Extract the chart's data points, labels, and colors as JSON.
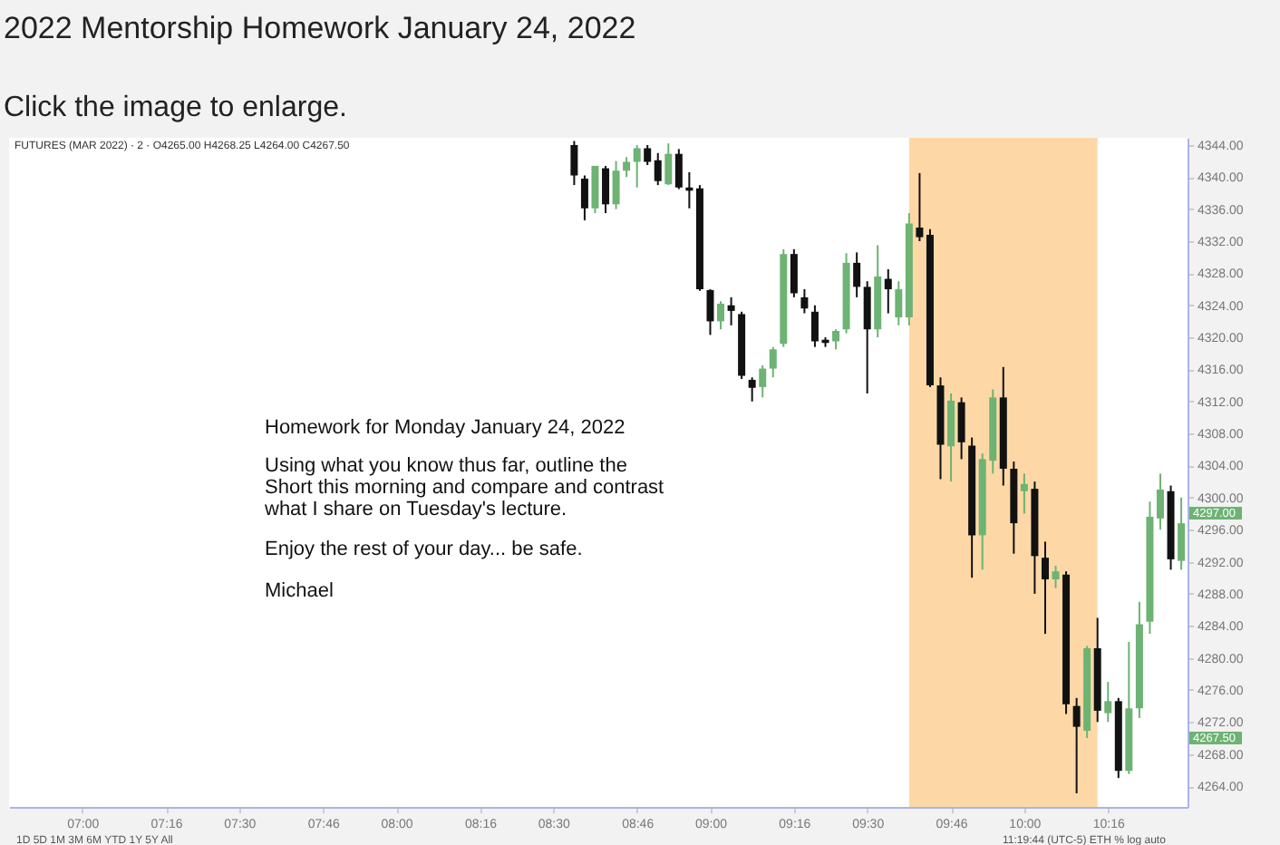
{
  "chart_data": {
    "type": "candlestick",
    "title": "2022 Mentorship Homework January 24, 2022",
    "subtitle": "Click the image to enlarge.",
    "annotations": [
      "FUTURES (MAR 2022) · 2 · O4265.00 H4268.25 L4264.00 C4267.50",
      "Homework for Monday January 24, 2022",
      "Using what you know thus far, outline the\nShort this morning and compare and contrast\nwhat I share on Tuesday's lecture.",
      "Enjoy the rest of your day... be safe.",
      "Michael",
      "1D  5D  1M  3M  6M  YTD  1Y  5Y  All",
      "11:19:44 (UTC-5)   ETH   %   log   auto",
      "4297.00",
      "4267.50"
    ],
    "x": [
      8.5667,
      8.6,
      8.6333,
      8.6667,
      8.7,
      8.7333,
      8.7667,
      8.8,
      8.8333,
      8.8667,
      8.9,
      8.9333,
      8.9667,
      9.0,
      9.0333,
      9.0667,
      9.1,
      9.1333,
      9.1667,
      9.2,
      9.2333,
      9.2667,
      9.3,
      9.3333,
      9.3667,
      9.4,
      9.4333,
      9.4667,
      9.5,
      9.5333,
      9.5667,
      9.6,
      9.6333,
      9.6667,
      9.7,
      9.7333,
      9.7667,
      9.8,
      9.8333,
      9.8667,
      9.9,
      9.9333,
      9.9667,
      10.0,
      10.0333,
      10.0667,
      10.1,
      10.1333,
      10.1667,
      10.2,
      10.2333,
      10.2667,
      10.3,
      10.3333,
      10.3667,
      10.4,
      10.4333,
      10.4667,
      10.5
    ],
    "ohlc": [
      [
        4344.0,
        4344.5,
        4339.0,
        4340.2
      ],
      [
        4339.8,
        4340.2,
        4334.6,
        4336.1
      ],
      [
        4336.1,
        4341.4,
        4335.5,
        4341.4
      ],
      [
        4341.1,
        4341.4,
        4335.5,
        4336.6
      ],
      [
        4336.6,
        4342.0,
        4336.0,
        4340.8
      ],
      [
        4340.8,
        4342.5,
        4340.0,
        4341.9
      ],
      [
        4341.9,
        4344.0,
        4338.7,
        4343.6
      ],
      [
        4343.6,
        4344.0,
        4341.5,
        4341.9
      ],
      [
        4342.1,
        4343.0,
        4339.0,
        4339.5
      ],
      [
        4339.1,
        4344.2,
        4339.0,
        4342.9
      ],
      [
        4342.9,
        4343.5,
        4338.5,
        4338.7
      ],
      [
        4338.7,
        4340.6,
        4336.1,
        4338.3
      ],
      [
        4338.6,
        4339.0,
        4325.8,
        4326.0
      ],
      [
        4325.9,
        4326.0,
        4320.3,
        4322.0
      ],
      [
        4322.0,
        4324.5,
        4321.0,
        4324.2
      ],
      [
        4324.0,
        4325.0,
        4321.5,
        4323.3
      ],
      [
        4322.9,
        4323.2,
        4314.8,
        4315.2
      ],
      [
        4314.7,
        4315.0,
        4312.0,
        4313.7
      ],
      [
        4313.8,
        4316.5,
        4312.5,
        4316.1
      ],
      [
        4316.1,
        4318.8,
        4315.0,
        4318.5
      ],
      [
        4319.2,
        4331.0,
        4318.8,
        4330.4
      ],
      [
        4330.4,
        4331.0,
        4325.0,
        4325.5
      ],
      [
        4325.0,
        4326.0,
        4323.0,
        4323.6
      ],
      [
        4323.2,
        4324.0,
        4318.8,
        4319.5
      ],
      [
        4319.7,
        4320.0,
        4318.8,
        4319.3
      ],
      [
        4319.5,
        4321.0,
        4318.5,
        4320.8
      ],
      [
        4321.0,
        4330.5,
        4320.5,
        4329.3
      ],
      [
        4329.3,
        4330.6,
        4325.0,
        4326.3
      ],
      [
        4326.3,
        4327.0,
        4313.0,
        4321.0
      ],
      [
        4321.0,
        4331.5,
        4320.0,
        4327.6
      ],
      [
        4327.3,
        4328.5,
        4323.0,
        4326.0
      ],
      [
        4322.5,
        4327.0,
        4321.5,
        4326.0
      ],
      [
        4322.5,
        4335.5,
        4321.5,
        4334.2
      ],
      [
        4333.7,
        4340.5,
        4332.0,
        4332.5
      ],
      [
        4332.8,
        4333.5,
        4313.8,
        4314.0
      ],
      [
        4314.0,
        4315.0,
        4302.3,
        4306.6
      ],
      [
        4306.4,
        4313.0,
        4302.0,
        4312.1
      ],
      [
        4311.9,
        4312.5,
        4304.8,
        4306.9
      ],
      [
        4306.5,
        4307.5,
        4290.0,
        4295.3
      ],
      [
        4295.3,
        4305.5,
        4291.0,
        4304.8
      ],
      [
        4304.6,
        4313.5,
        4303.0,
        4312.5
      ],
      [
        4312.5,
        4316.3,
        4301.5,
        4303.6
      ],
      [
        4303.6,
        4304.5,
        4293.0,
        4296.8
      ],
      [
        4300.8,
        4303.0,
        4298.0,
        4301.7
      ],
      [
        4301.1,
        4302.0,
        4288.0,
        4292.7
      ],
      [
        4292.5,
        4294.5,
        4283.0,
        4289.8
      ],
      [
        4289.8,
        4291.5,
        4288.7,
        4290.8
      ],
      [
        4290.4,
        4290.8,
        4273.0,
        4274.2
      ],
      [
        4274.0,
        4275.0,
        4263.1,
        4271.4
      ],
      [
        4270.9,
        4281.5,
        4270.0,
        4281.2
      ],
      [
        4281.2,
        4285.0,
        4272.0,
        4273.4
      ],
      [
        4273.1,
        4277.0,
        4272.0,
        4274.6
      ],
      [
        4274.6,
        4275.0,
        4265.0,
        4265.9
      ],
      [
        4265.9,
        4282.0,
        4265.5,
        4273.7
      ],
      [
        4273.7,
        4287.0,
        4272.5,
        4284.2
      ],
      [
        4284.5,
        4299.5,
        4283.0,
        4297.6
      ],
      [
        4297.4,
        4303.0,
        4296.0,
        4301.0
      ],
      [
        4300.8,
        4301.5,
        4291.0,
        4292.3
      ],
      [
        4292.1,
        4300.0,
        4291.0,
        4296.8
      ]
    ],
    "colors": [
      "#111111",
      "#111111",
      "#6db373",
      "#111111",
      "#6db373",
      "#6db373",
      "#6db373",
      "#111111",
      "#111111",
      "#6db373",
      "#111111",
      "#111111",
      "#111111",
      "#111111",
      "#6db373",
      "#111111",
      "#111111",
      "#111111",
      "#6db373",
      "#6db373",
      "#6db373",
      "#111111",
      "#111111",
      "#111111",
      "#111111",
      "#6db373",
      "#6db373",
      "#111111",
      "#111111",
      "#6db373",
      "#111111",
      "#6db373",
      "#6db373",
      "#111111",
      "#111111",
      "#111111",
      "#6db373",
      "#111111",
      "#111111",
      "#6db373",
      "#6db373",
      "#111111",
      "#111111",
      "#6db373",
      "#111111",
      "#111111",
      "#6db373",
      "#111111",
      "#111111",
      "#6db373",
      "#111111",
      "#6db373",
      "#111111",
      "#6db373",
      "#6db373",
      "#6db373",
      "#6db373",
      "#111111",
      "#6db373"
    ],
    "bands": [
      {
        "axis": "x",
        "from": 9.6333,
        "to": 10.2333,
        "color": "#fdd8a6"
      }
    ],
    "xlim": [
      6.767,
      10.52
    ],
    "xticks": [
      {
        "value": 7,
        "label": "07:00"
      },
      {
        "value": 7.2667,
        "label": "07:16"
      },
      {
        "value": 7.5,
        "label": "07:30"
      },
      {
        "value": 7.7667,
        "label": "07:46"
      },
      {
        "value": 8,
        "label": "08:00"
      },
      {
        "value": 8.2667,
        "label": "08:16"
      },
      {
        "value": 8.5,
        "label": "08:30"
      },
      {
        "value": 8.7667,
        "label": "08:46"
      },
      {
        "value": 9,
        "label": "09:00"
      },
      {
        "value": 9.2667,
        "label": "09:16"
      },
      {
        "value": 9.5,
        "label": "09:30"
      },
      {
        "value": 9.7667,
        "label": "09:46"
      },
      {
        "value": 10,
        "label": "10:00"
      },
      {
        "value": 10.2667,
        "label": "10:16"
      }
    ],
    "ylim": [
      4261.4,
      4344.9
    ],
    "yticks": [
      {
        "value": 4264,
        "label": "4264.00"
      },
      {
        "value": 4268,
        "label": "4268.00"
      },
      {
        "value": 4272,
        "label": "4272.00"
      },
      {
        "value": 4276,
        "label": "4276.00"
      },
      {
        "value": 4280,
        "label": "4280.00"
      },
      {
        "value": 4284,
        "label": "4284.00"
      },
      {
        "value": 4288,
        "label": "4288.00"
      },
      {
        "value": 4292,
        "label": "4292.00"
      },
      {
        "value": 4296,
        "label": "4296.00"
      },
      {
        "value": 4300,
        "label": "4300.00"
      },
      {
        "value": 4304,
        "label": "4304.00"
      },
      {
        "value": 4308,
        "label": "4308.00"
      },
      {
        "value": 4312,
        "label": "4312.00"
      },
      {
        "value": 4316,
        "label": "4316.00"
      },
      {
        "value": 4320,
        "label": "4320.00"
      },
      {
        "value": 4324,
        "label": "4324.00"
      },
      {
        "value": 4328,
        "label": "4328.00"
      },
      {
        "value": 4332,
        "label": "4332.00"
      },
      {
        "value": 4336,
        "label": "4336.00"
      },
      {
        "value": 4340,
        "label": "4340.00"
      },
      {
        "value": 4344,
        "label": "4344.00"
      }
    ],
    "grid": false
  }
}
